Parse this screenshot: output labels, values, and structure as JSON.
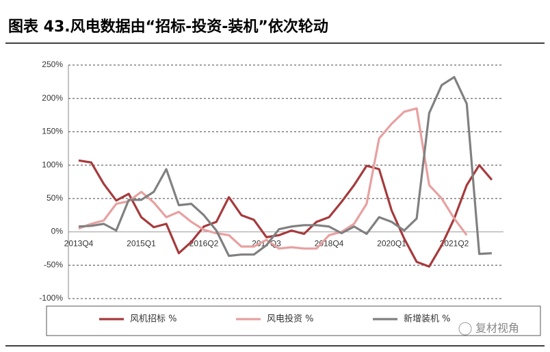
{
  "chart_data": {
    "type": "line",
    "title": "图表 43.风电数据由“招标-投资-装机”依次轮动",
    "categories": [
      "2013Q4",
      null,
      null,
      null,
      null,
      "2015Q1",
      null,
      null,
      null,
      null,
      "2016Q2",
      null,
      null,
      null,
      null,
      "2017Q3",
      null,
      null,
      null,
      null,
      "2018Q4",
      null,
      null,
      null,
      null,
      "2020Q1",
      null,
      null,
      null,
      null,
      "2021Q2",
      null,
      null,
      null
    ],
    "series": [
      {
        "name": "风机招标 %",
        "color": "#a63a3c",
        "values": [
          107,
          104,
          72,
          47,
          57,
          22,
          7,
          12,
          -32,
          -15,
          8,
          15,
          52,
          25,
          18,
          -8,
          -5,
          2,
          -3,
          15,
          22,
          45,
          70,
          99,
          94,
          32,
          -10,
          -45,
          -52,
          -20,
          20,
          70,
          100,
          78
        ]
      },
      {
        "name": "风电投资 %",
        "color": "#e8a0a0",
        "values": [
          5,
          12,
          17,
          42,
          46,
          60,
          44,
          22,
          30,
          15,
          3,
          -2,
          -5,
          -22,
          -22,
          -12,
          -25,
          -23,
          -25,
          -25,
          -5,
          0,
          12,
          42,
          140,
          162,
          180,
          185,
          70,
          50,
          20,
          -5,
          null,
          null
        ]
      },
      {
        "name": "新增装机 %",
        "color": "#808080",
        "values": [
          8,
          9,
          12,
          2,
          48,
          48,
          60,
          94,
          40,
          42,
          25,
          2,
          -36,
          -34,
          -34,
          -20,
          4,
          8,
          10,
          10,
          8,
          -2,
          8,
          -3,
          22,
          15,
          2,
          20,
          178,
          220,
          232,
          192,
          -33,
          -32
        ]
      }
    ],
    "ylim": [
      -100,
      250
    ],
    "yticks": [
      {
        "value": -100,
        "label": "-100%"
      },
      {
        "value": -50,
        "label": "-50%"
      },
      {
        "value": 0,
        "label": "0%"
      },
      {
        "value": 50,
        "label": "50%"
      },
      {
        "value": 100,
        "label": "100%"
      },
      {
        "value": 150,
        "label": "150%"
      },
      {
        "value": 200,
        "label": "200%"
      },
      {
        "value": 250,
        "label": "250%"
      }
    ],
    "grid": true,
    "watermark": "复材视角"
  }
}
